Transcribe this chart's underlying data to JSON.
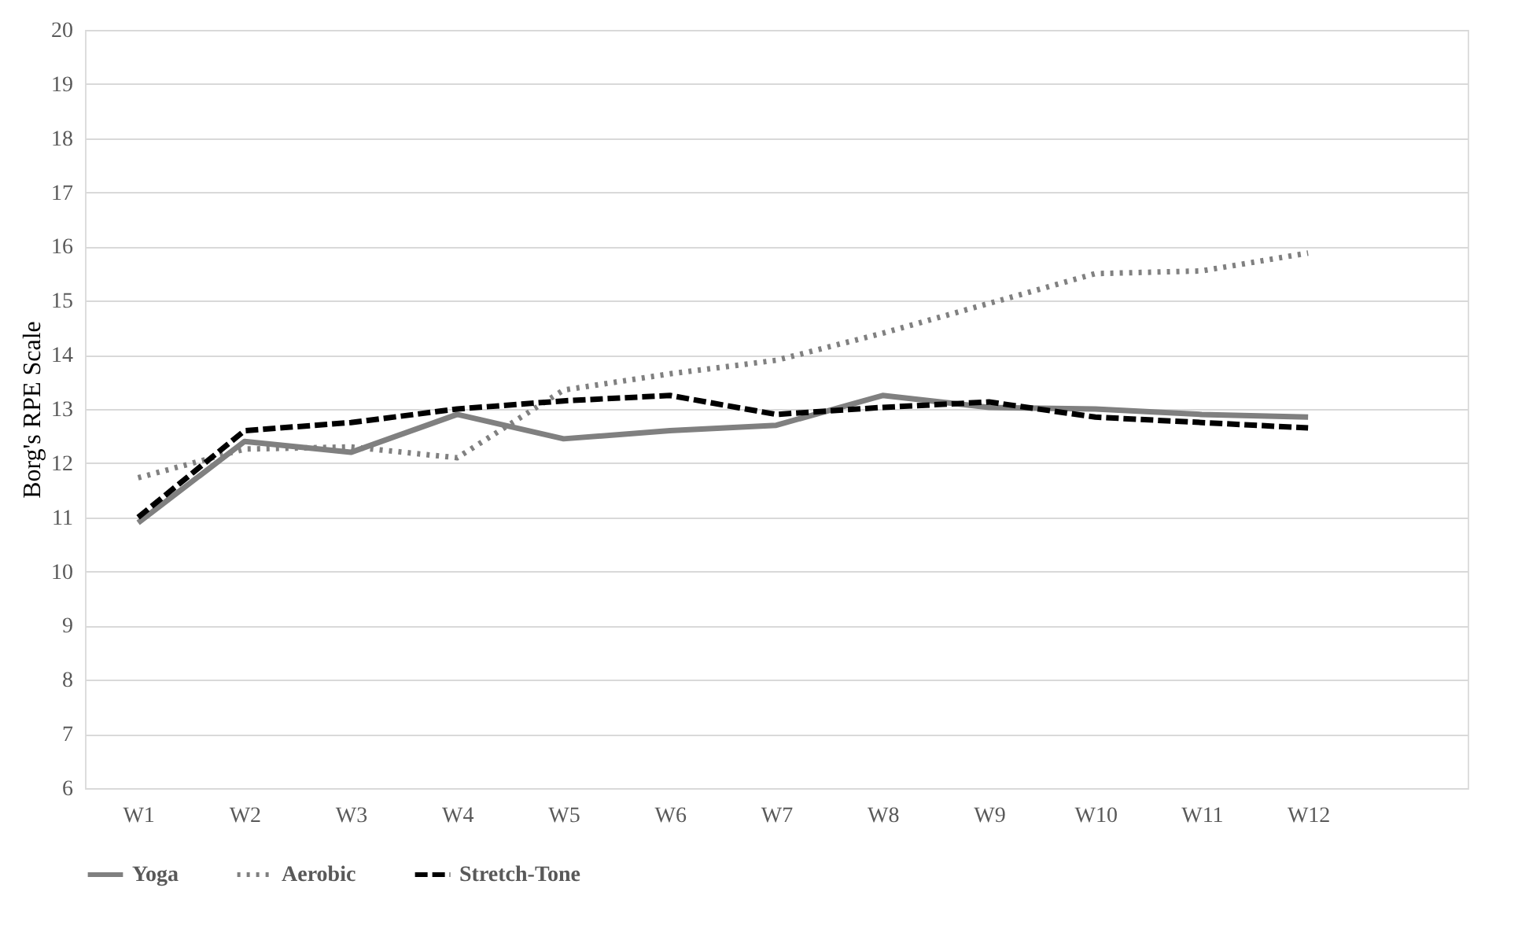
{
  "chart_data": {
    "type": "line",
    "ylabel": "Borg's RPE Scale",
    "categories": [
      "W1",
      "W2",
      "W3",
      "W4",
      "W5",
      "W6",
      "W7",
      "W8",
      "W9",
      "W10",
      "W11",
      "W12",
      null
    ],
    "series": [
      {
        "name": "Yoga",
        "color": "#808080",
        "line_style": "solid",
        "values": [
          10.9,
          12.4,
          12.2,
          12.9,
          12.45,
          12.6,
          12.7,
          13.25,
          13.03,
          13.0,
          12.9,
          12.85,
          null
        ]
      },
      {
        "name": "Aerobic",
        "color": "#808080",
        "line_style": "dotted",
        "values": [
          11.73,
          12.26,
          12.3,
          12.1,
          13.35,
          13.65,
          13.9,
          14.4,
          14.95,
          15.5,
          15.55,
          15.88,
          null
        ]
      },
      {
        "name": "Stretch-Tone",
        "color": "#000000",
        "line_style": "dashed",
        "values": [
          11.0,
          12.6,
          12.75,
          13.0,
          13.15,
          13.25,
          12.9,
          13.03,
          13.13,
          12.85,
          12.75,
          12.65,
          null
        ]
      }
    ],
    "ylim": [
      6,
      20
    ],
    "yticks": [
      6,
      7,
      8,
      9,
      10,
      11,
      12,
      13,
      14,
      15,
      16,
      17,
      18,
      19,
      20
    ],
    "grid": "y",
    "legend": "bottom",
    "marker": "none"
  }
}
